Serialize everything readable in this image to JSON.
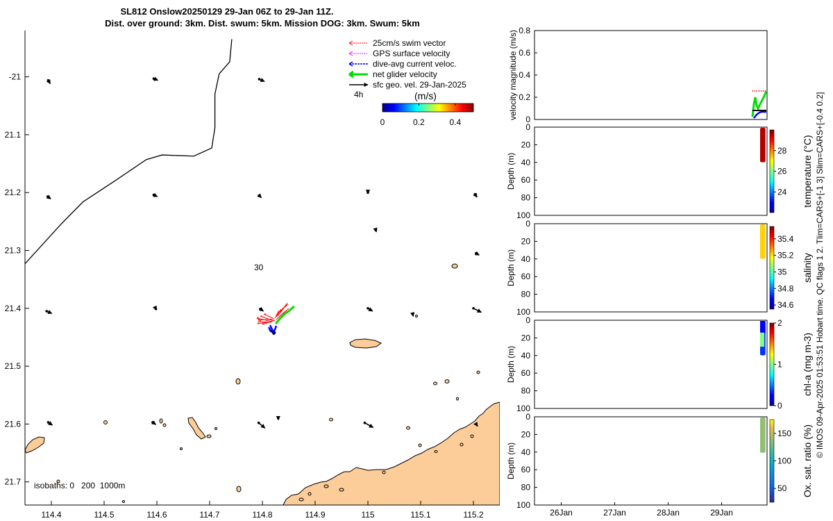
{
  "title": {
    "line1": "SL812 Onslow20250129 29-Jan 06Z to 29-Jan 11Z.",
    "line2": "Dist. over ground: 3km. Dist. swum: 5km. Mission DOG: 3km. Swum: 5km"
  },
  "side_text": "© IMOS 09-Apr-2025 01:53:51 Hobart time. QC flags 1  2. Tlim=CARS+[-1 3] Slim=CARS+[-0.4 0.2]",
  "colors": {
    "land": "#fccc99",
    "swim": "#ff0000",
    "gps": "#ff00ff",
    "dive": "#0000ff",
    "net": "#00dd00",
    "sfc": "#000000"
  },
  "chart_data": [
    {
      "type": "scatter",
      "name": "map",
      "xlim": [
        114.35,
        115.25
      ],
      "ylim": [
        -21.74,
        -20.92
      ],
      "xticks": [
        114.4,
        114.5,
        114.6,
        114.7,
        114.8,
        114.9,
        115,
        115.1,
        115.2
      ],
      "xticklabels": [
        "114.4",
        "114.5",
        "114.6",
        "114.7",
        "114.8",
        "114.9",
        "115",
        "115.1",
        "115.2"
      ],
      "yticks": [
        -21,
        -21.1,
        -21.2,
        -21.3,
        -21.4,
        -21.5,
        -21.6,
        -21.7
      ],
      "yticklabels": [
        "-21",
        "21.1",
        "21.2",
        "21.3",
        "21.4",
        "21.5",
        "21.6",
        "21.7"
      ],
      "legend": {
        "position": "top-right",
        "entries": [
          "25cm/s swim vector",
          "GPS surface velocity",
          "dive-avg current veloc.",
          "net glider velocity",
          "sfc geo. vel. 29-Jan-2025"
        ],
        "scale_label": "4h"
      },
      "colorbar": {
        "label": "(m/s)",
        "range": [
          0,
          0.5
        ],
        "ticks": [
          0,
          0.2,
          0.4
        ],
        "ticklabels": [
          "0",
          "0.2",
          "0.4"
        ]
      },
      "isobath_label": "isobaths: 0   200  1000m",
      "contour_label": "30",
      "boundary_line": [
        [
          114.35,
          -21.323
        ],
        [
          114.38,
          -21.293
        ],
        [
          114.42,
          -21.253
        ],
        [
          114.46,
          -21.216
        ],
        [
          114.52,
          -21.18
        ],
        [
          114.58,
          -21.143
        ],
        [
          114.61,
          -21.135
        ],
        [
          114.67,
          -21.137
        ],
        [
          114.704,
          -21.123
        ],
        [
          114.71,
          -21.088
        ],
        [
          114.71,
          -21.03
        ],
        [
          114.718,
          -20.995
        ],
        [
          114.738,
          -20.974
        ],
        [
          114.742,
          -20.935
        ]
      ],
      "sfc_vectors": [
        {
          "lon": 114.394,
          "lat": -21.006,
          "u": 0.004,
          "v": -0.006
        },
        {
          "lon": 114.594,
          "lat": -21.003,
          "u": 0.008,
          "v": -0.003
        },
        {
          "lon": 114.794,
          "lat": -21.004,
          "u": 0.01,
          "v": -0.004
        },
        {
          "lon": 114.393,
          "lat": -21.207,
          "u": 0.006,
          "v": -0.004
        },
        {
          "lon": 114.594,
          "lat": -21.204,
          "u": 0.007,
          "v": -0.003
        },
        {
          "lon": 114.794,
          "lat": -21.205,
          "u": 0.004,
          "v": -0.004
        },
        {
          "lon": 115.0,
          "lat": -21.2,
          "u": 0.0,
          "v": -0.002
        },
        {
          "lon": 115.203,
          "lat": -21.203,
          "u": 0.004,
          "v": -0.005
        },
        {
          "lon": 115.015,
          "lat": -21.265,
          "u": 0.001,
          "v": -0.003
        },
        {
          "lon": 115.205,
          "lat": -21.305,
          "u": 0.006,
          "v": -0.003
        },
        {
          "lon": 114.391,
          "lat": -21.405,
          "u": 0.01,
          "v": -0.004
        },
        {
          "lon": 114.598,
          "lat": -21.401,
          "u": 0.001,
          "v": -0.002
        },
        {
          "lon": 114.796,
          "lat": -21.401,
          "u": 0.006,
          "v": -0.004
        },
        {
          "lon": 115.0,
          "lat": -21.4,
          "u": 0.009,
          "v": -0.005
        },
        {
          "lon": 115.085,
          "lat": -21.41,
          "u": 0.001,
          "v": -0.004
        },
        {
          "lon": 115.2,
          "lat": -21.4,
          "u": 0.015,
          "v": -0.007
        },
        {
          "lon": 114.394,
          "lat": -21.597,
          "u": 0.008,
          "v": -0.005
        },
        {
          "lon": 114.592,
          "lat": -21.597,
          "u": 0.006,
          "v": -0.004
        },
        {
          "lon": 114.793,
          "lat": -21.598,
          "u": 0.012,
          "v": -0.009
        },
        {
          "lon": 114.994,
          "lat": -21.598,
          "u": 0.016,
          "v": -0.008
        },
        {
          "lon": 114.83,
          "lat": -21.59,
          "u": 0.0,
          "v": -0.003
        },
        {
          "lon": 115.205,
          "lat": -21.6,
          "u": 0.003,
          "v": -0.004
        }
      ],
      "glider_position": {
        "lon": 114.82,
        "lat": -21.43
      }
    },
    {
      "type": "line",
      "name": "velocity magnitude",
      "ylabel": "velocity magnitude (m/s)",
      "ylim": [
        0,
        0.8
      ],
      "yticks": [
        0,
        0.2,
        0.4,
        0.6,
        0.8
      ],
      "yticklabels": [
        "0",
        "0.2",
        "0.4",
        "0.6",
        "0.8"
      ],
      "xlim": [
        25.5,
        29.85
      ]
    },
    {
      "type": "heatmap",
      "name": "temperature",
      "ylabel": "Depth (m)",
      "cbar_label": "temperature (°C)",
      "ylim": [
        0,
        100
      ],
      "yticks": [
        0,
        20,
        40,
        60,
        80,
        100
      ],
      "yticklabels": [
        "0",
        "20",
        "40",
        "60",
        "80",
        "100"
      ],
      "clim": [
        22,
        30
      ],
      "cticks": [
        24,
        26,
        28
      ],
      "cticklabels": [
        "24",
        "26",
        "28"
      ],
      "data": {
        "t_start": 29.72,
        "t_end": 29.82,
        "max_depth": 39,
        "value": 29.6
      }
    },
    {
      "type": "heatmap",
      "name": "salinity",
      "ylabel": "Depth (m)",
      "cbar_label": "salinity",
      "ylim": [
        0,
        100
      ],
      "yticks": [
        0,
        20,
        40,
        60,
        80,
        100
      ],
      "yticklabels": [
        "0",
        "20",
        "40",
        "60",
        "80",
        "100"
      ],
      "clim": [
        34.55,
        35.55
      ],
      "cticks": [
        34.6,
        34.8,
        35,
        35.2,
        35.4
      ],
      "cticklabels": [
        "34.6",
        "34.8",
        "35",
        "35.2",
        "35.4"
      ],
      "data": {
        "t_start": 29.72,
        "t_end": 29.82,
        "max_depth": 39,
        "value": 35.22
      }
    },
    {
      "type": "heatmap",
      "name": "chl-a",
      "ylabel": "Depth (m)",
      "cbar_label": "chl-a (mg m-3)",
      "ylim": [
        0,
        100
      ],
      "yticks": [
        0,
        20,
        40,
        60,
        80,
        100
      ],
      "yticklabels": [
        "0",
        "20",
        "40",
        "60",
        "80",
        "100"
      ],
      "clim": [
        0,
        2
      ],
      "cticks": [
        0,
        1,
        2
      ],
      "cticklabels": [
        "0",
        "1",
        "2"
      ],
      "data": {
        "t_start": 29.72,
        "t_end": 29.82,
        "max_depth": 39,
        "value": 0.35
      }
    },
    {
      "type": "heatmap",
      "name": "oxygen saturation",
      "ylabel": "Depth (m)",
      "cbar_label": "Ox. sat. ratio (%)",
      "ylim": [
        0,
        100
      ],
      "yticks": [
        0,
        20,
        40,
        60,
        80,
        100
      ],
      "yticklabels": [
        "0",
        "20",
        "40",
        "60",
        "80",
        "100"
      ],
      "clim": [
        25,
        175
      ],
      "cticks": [
        50,
        100,
        150
      ],
      "cticklabels": [
        "50",
        "100",
        "150"
      ],
      "xticks": [
        26,
        27,
        28,
        29
      ],
      "xticklabels": [
        "26Jan",
        "27Jan",
        "28Jan",
        "29Jan"
      ],
      "data": {
        "t_start": 29.72,
        "t_end": 29.82,
        "max_depth": 40,
        "value": 137
      }
    }
  ]
}
